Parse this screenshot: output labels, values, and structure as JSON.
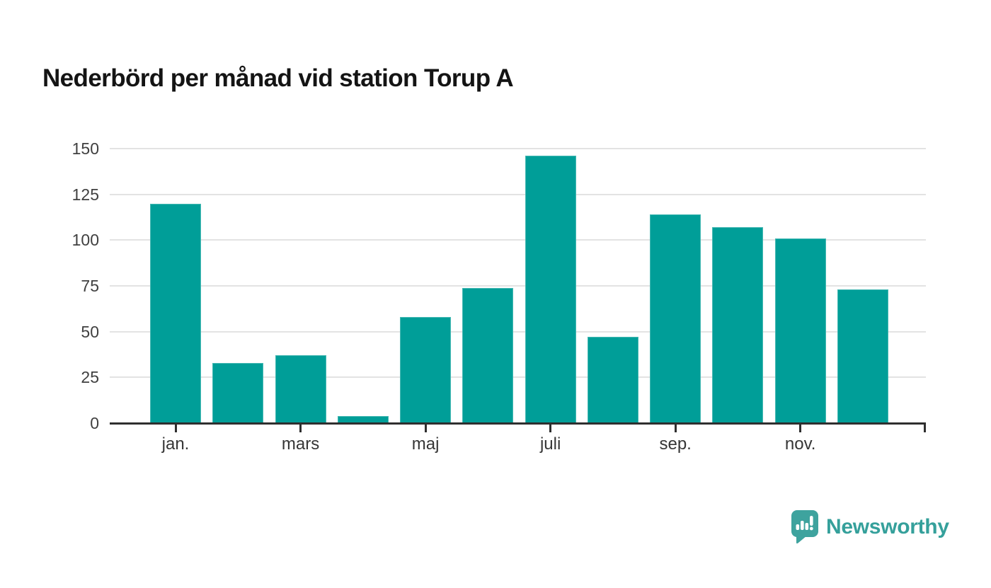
{
  "title": "Nederbörd per månad vid station Torup A",
  "brand": {
    "name": "Newsworthy"
  },
  "colors": {
    "bar": "#009E98",
    "grid": "#E3E3E3",
    "axis": "#2F2F2F",
    "title_text": "#141414",
    "tick_label": "#404040",
    "logo_mark": "#3EA39E",
    "logo_text": "#35A09B"
  },
  "chart_data": {
    "type": "bar",
    "title": "Nederbörd per månad vid station Torup A",
    "categories": [
      "jan.",
      "",
      "mars",
      "",
      "maj",
      "",
      "juli",
      "",
      "sep.",
      "",
      "nov.",
      ""
    ],
    "values": [
      120,
      33,
      37,
      4,
      58,
      74,
      146,
      47,
      114,
      107,
      101,
      73
    ],
    "xlabel": "",
    "ylabel": "",
    "yticks": [
      0,
      25,
      50,
      75,
      100,
      125,
      150
    ],
    "ylim": [
      0,
      150
    ],
    "grid": "horizontal-only",
    "legend": "none",
    "bar_color": "#009E98"
  }
}
